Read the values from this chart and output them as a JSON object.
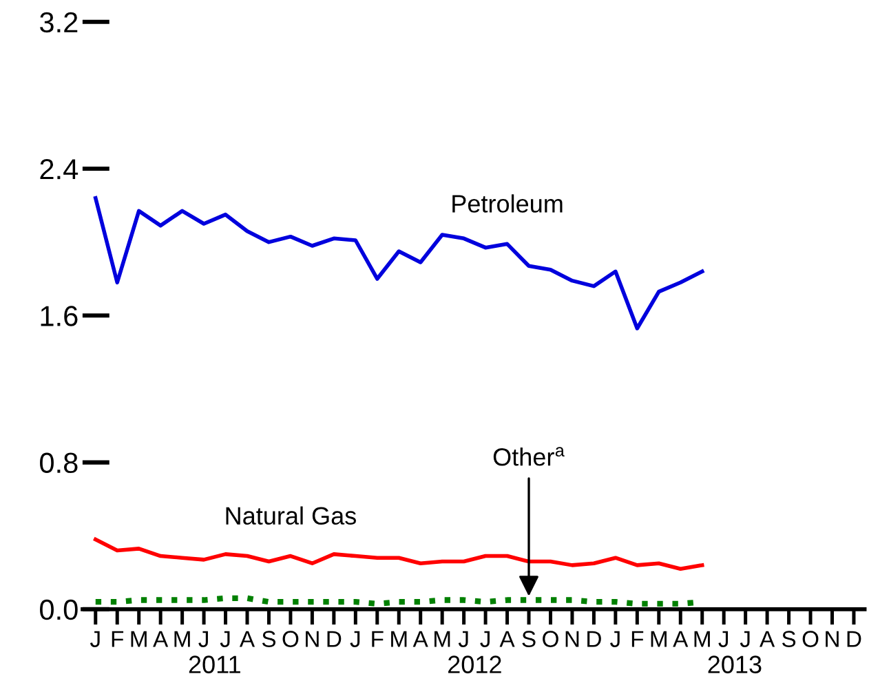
{
  "chart_data": {
    "type": "line",
    "categories": [
      "J",
      "F",
      "M",
      "A",
      "M",
      "J",
      "J",
      "A",
      "S",
      "O",
      "N",
      "D",
      "J",
      "F",
      "M",
      "A",
      "M",
      "J",
      "J",
      "A",
      "S",
      "O",
      "N",
      "D",
      "J",
      "F",
      "M",
      "A",
      "M",
      "J",
      "J",
      "A",
      "S",
      "O",
      "N",
      "D"
    ],
    "series": [
      {
        "name": "Petroleum",
        "color": "#0000dd",
        "line_style": "solid",
        "values": [
          2.24,
          1.78,
          2.17,
          2.09,
          2.17,
          2.1,
          2.15,
          2.06,
          2.0,
          2.03,
          1.98,
          2.02,
          2.01,
          1.8,
          1.95,
          1.89,
          2.04,
          2.02,
          1.97,
          1.99,
          1.87,
          1.85,
          1.79,
          1.76,
          1.84,
          1.53,
          1.73,
          1.78,
          1.84,
          null,
          null,
          null,
          null,
          null,
          null,
          null
        ]
      },
      {
        "name": "Natural Gas",
        "color": "#ff0000",
        "line_style": "solid",
        "values": [
          0.38,
          0.32,
          0.33,
          0.29,
          0.28,
          0.27,
          0.3,
          0.29,
          0.26,
          0.29,
          0.25,
          0.3,
          0.29,
          0.28,
          0.28,
          0.25,
          0.26,
          0.26,
          0.29,
          0.29,
          0.26,
          0.26,
          0.24,
          0.25,
          0.28,
          0.24,
          0.25,
          0.22,
          0.24,
          null,
          null,
          null,
          null,
          null,
          null,
          null
        ]
      },
      {
        "name": "Other$^{a}$",
        "color": "#008000",
        "line_style": "dotted",
        "values": [
          0.04,
          0.04,
          0.05,
          0.05,
          0.05,
          0.05,
          0.06,
          0.06,
          0.04,
          0.04,
          0.04,
          0.04,
          0.04,
          0.03,
          0.04,
          0.04,
          0.05,
          0.05,
          0.04,
          0.05,
          0.05,
          0.05,
          0.05,
          0.04,
          0.04,
          0.03,
          0.03,
          0.03,
          0.04,
          null,
          null,
          null,
          null,
          null,
          null,
          null
        ]
      }
    ],
    "annotations": [
      "2011",
      "2012",
      "2013"
    ],
    "ylim": [
      0,
      3.2
    ],
    "yticks": [
      {
        "value": 0,
        "label": "0.0"
      },
      {
        "value": 0.8,
        "label": "0.8"
      },
      {
        "value": 1.6,
        "label": "1.6"
      },
      {
        "value": 2.4,
        "label": "2.4"
      },
      {
        "value": 3.2,
        "label": "3.2"
      }
    ],
    "grid": false,
    "legend": false,
    "marker": "none"
  }
}
